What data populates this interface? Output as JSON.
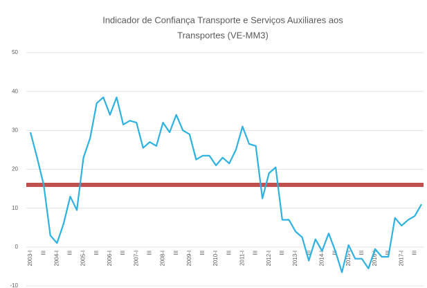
{
  "chart_data": {
    "type": "line",
    "title": [
      "Indicador de Confiança Transporte e Serviços Auxiliares aos",
      "Transportes  (VE-MM3)"
    ],
    "categories": [
      "2003-I",
      null,
      "III",
      null,
      "2004-I",
      null,
      "III",
      null,
      "2005-I",
      null,
      "III",
      null,
      "2006-I",
      null,
      "III",
      null,
      "2007-I",
      null,
      "III",
      null,
      "2008-I",
      null,
      "III",
      null,
      "2009-I",
      null,
      "III",
      null,
      "2010-I",
      null,
      "III",
      null,
      "2011-I",
      null,
      "III",
      null,
      "2012-I",
      null,
      "III",
      null,
      "2013-I",
      null,
      "III",
      null,
      "2014-I",
      null,
      "III",
      null,
      "2015-I",
      null,
      "III",
      null,
      "2016-I",
      null,
      "III",
      null,
      "2017-I",
      null,
      "III",
      null
    ],
    "series": [
      {
        "color": "#2cb1e1",
        "values": [
          29.5,
          23,
          16,
          3,
          1,
          6,
          13,
          9.5,
          23,
          28,
          37,
          38.5,
          34,
          38.5,
          31.5,
          32.5,
          32,
          25.5,
          27,
          26,
          32,
          29.5,
          34,
          30,
          29,
          22.5,
          23.5,
          23.5,
          21,
          23,
          21.5,
          25,
          31,
          26.5,
          26,
          12.5,
          19,
          20.5,
          7,
          7,
          4,
          2.5,
          -3.5,
          2,
          -1,
          3.5,
          -1,
          -6.5,
          0.5,
          -3,
          -3,
          -5.5,
          -0.5,
          -2.5,
          -2.5,
          7.5,
          5.5,
          7,
          8,
          11
        ]
      }
    ],
    "reference_line": {
      "value": 16,
      "color": "#c0504d"
    },
    "ylim": [
      -10,
      50
    ],
    "yticks": [
      -10,
      0,
      10,
      20,
      30,
      40,
      50
    ],
    "grid": true
  }
}
